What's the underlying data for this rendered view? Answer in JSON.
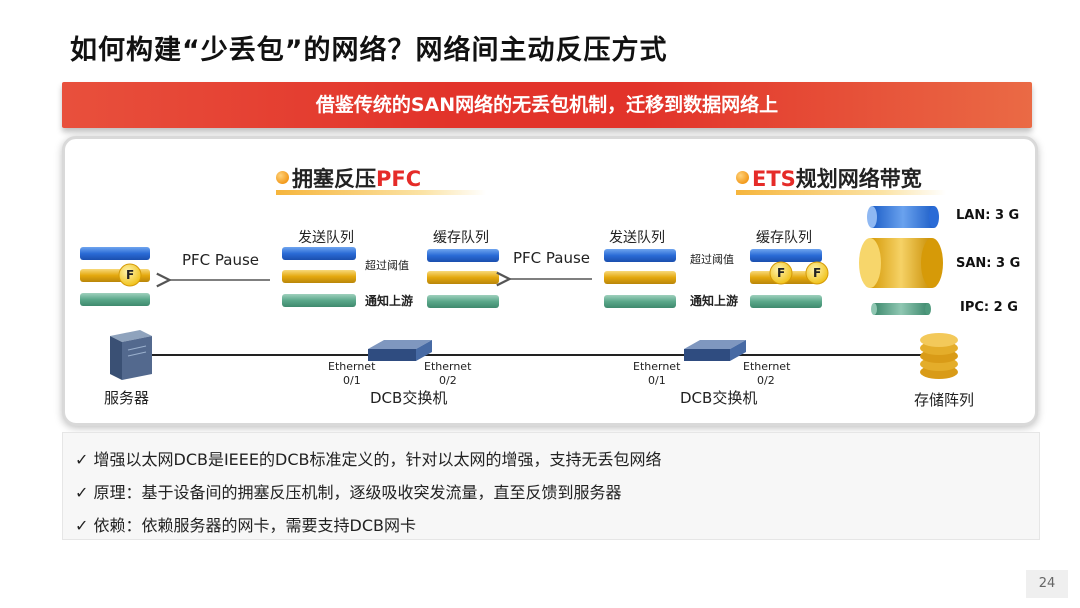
{
  "title": "如何构建“少丢包”的网络？网络间主动反压方式",
  "banner": "借鉴传统的SAN网络的无丢包机制，迁移到数据网络上",
  "left_section": {
    "dot": "",
    "prefix": "拥塞反压",
    "highlight": "PFC"
  },
  "right_section": {
    "dot": "",
    "highlight": "ETS",
    "suffix": "规划网络带宽"
  },
  "labels": {
    "pfc_pause_1": "PFC Pause",
    "pfc_pause_2": "PFC Pause",
    "send_queue_1": "发送队列",
    "cache_queue_1": "缓存队列",
    "send_queue_2": "发送队列",
    "cache_queue_2": "缓存队列",
    "exceed_1": "超过阈值",
    "notify_1": "通知上游",
    "exceed_2": "超过阈值",
    "notify_2": "通知上游",
    "flag": "F",
    "lan": "LAN: 3 G",
    "san": "SAN: 3 G",
    "ipc": "IPC: 2 G",
    "server": "服务器",
    "storage": "存储阵列",
    "switch_1": "DCB交换机",
    "switch_2": "DCB交换机",
    "eth_a": "Ethernet",
    "eth_a_port": "0/1",
    "eth_b": "Ethernet",
    "eth_b_port": "0/2",
    "eth_c": "Ethernet",
    "eth_c_port": "0/1",
    "eth_d": "Ethernet",
    "eth_d_port": "0/2"
  },
  "bullets": [
    "✓ 增强以太网DCB是IEEE的DCB标准定义的，针对以太网的增强，支持无丢包网络",
    "✓ 原理：基于设备间的拥塞反压机制，逐级吸收突发流量，直至反馈到服务器",
    "✓ 依赖：依赖服务器的网卡，需要支持DCB网卡"
  ],
  "page_number": "24",
  "colors": {
    "blue": "#2e6fd6",
    "gold": "#e7ae0e",
    "green": "#5aa88a",
    "red": "#e52b28"
  }
}
